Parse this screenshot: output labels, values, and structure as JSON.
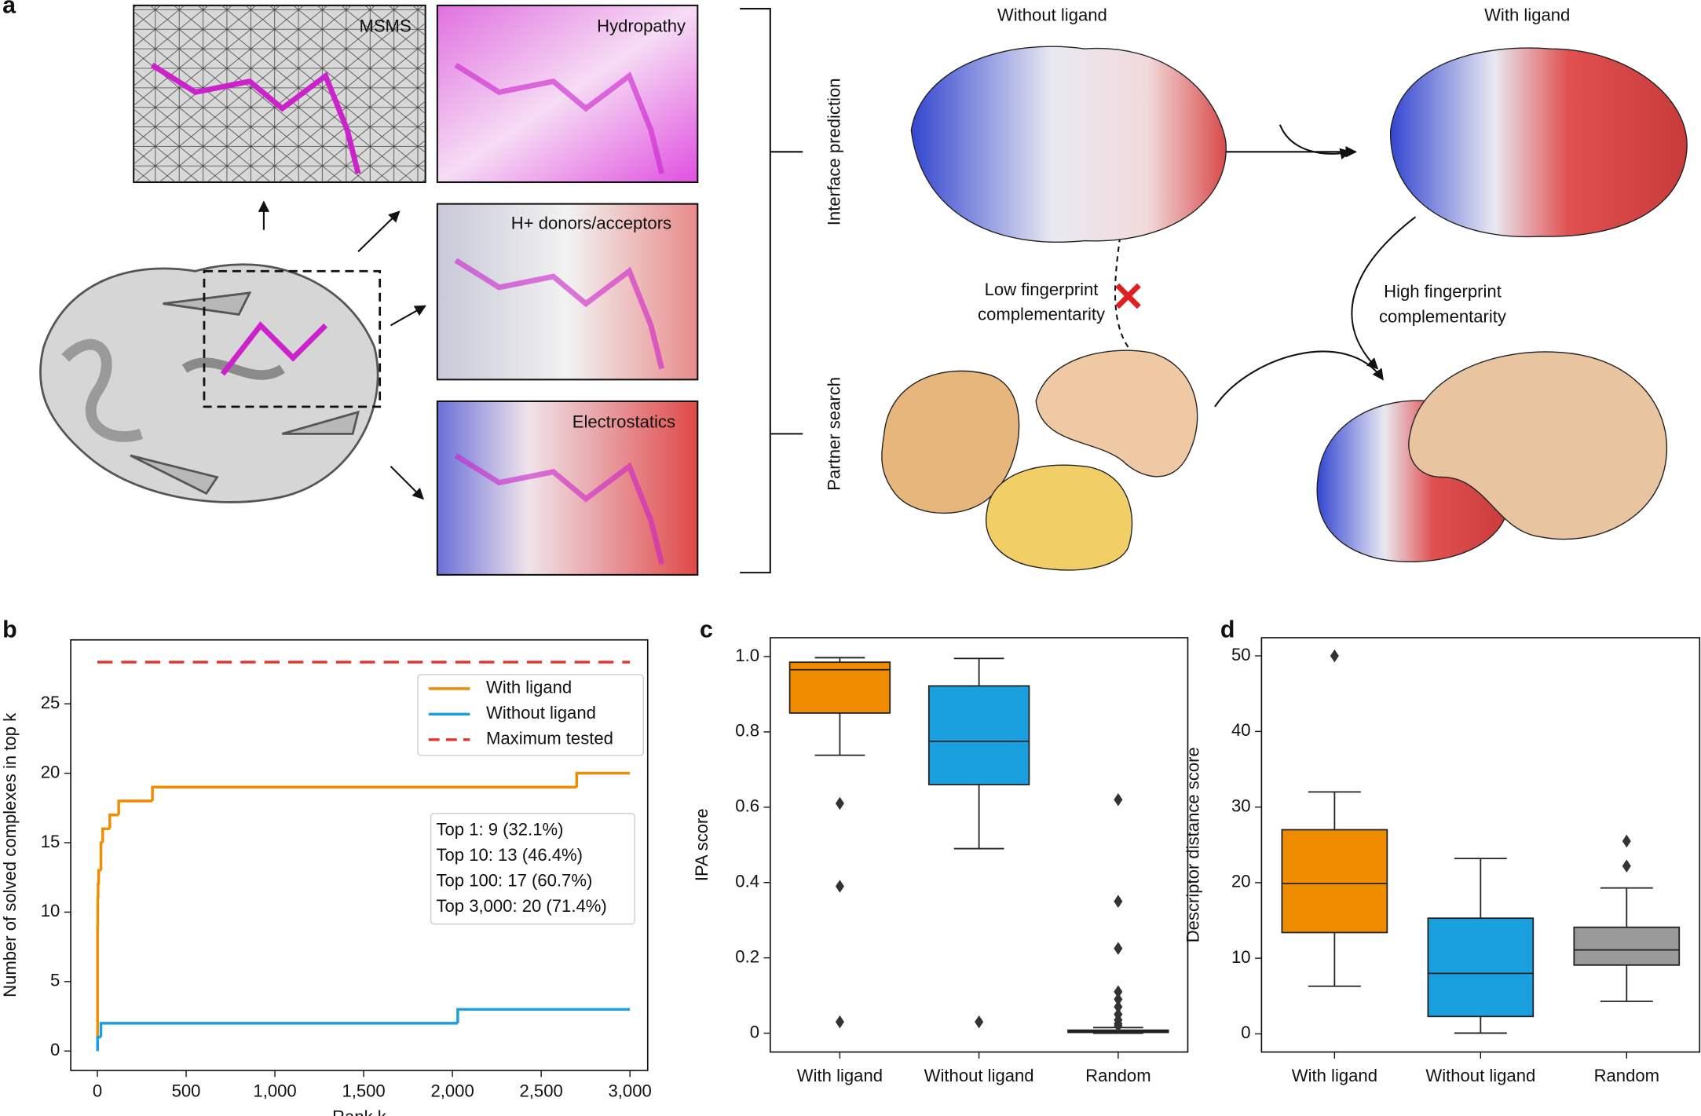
{
  "panel_labels": [
    "a",
    "b",
    "c",
    "d"
  ],
  "diagram": {
    "panel_titles": [
      "MSMS",
      "Hydropathy",
      "H+ donors/acceptors",
      "Electrostatics"
    ],
    "row_labels": [
      "Interface prediction",
      "Partner search"
    ],
    "column_labels": [
      "Without ligand",
      "With ligand"
    ],
    "low_note": [
      "Low fingerprint",
      "complementarity"
    ],
    "high_note": [
      "High fingerprint",
      "complementarity"
    ]
  },
  "chart_data": [
    {
      "type": "line",
      "step": "post",
      "xlabel": "Rank k",
      "ylabel": "Number of solved complexes in top k",
      "xlim": [
        -150,
        3100
      ],
      "ylim": [
        -1.4,
        29.6
      ],
      "xticks": [
        0,
        500,
        {
          "value": 1000,
          "label": "1,000"
        },
        {
          "value": 1500,
          "label": "1,500"
        },
        {
          "value": 2000,
          "label": "2,000"
        },
        {
          "value": 2500,
          "label": "2,500"
        },
        {
          "value": 3000,
          "label": "3,000"
        }
      ],
      "yticks": [
        0,
        5,
        10,
        15,
        20,
        25
      ],
      "grid": false,
      "legend": "upper right",
      "series": [
        {
          "name": "With ligand",
          "color": "#f08c00",
          "x": [
            1,
            2,
            4,
            7,
            10,
            20,
            30,
            50,
            70,
            120,
            310,
            2700,
            3000
          ],
          "values": [
            9,
            11,
            12,
            13,
            13,
            15,
            16,
            16,
            17,
            18,
            19,
            20,
            20
          ]
        },
        {
          "name": "Without ligand",
          "color": "#1a9fdf",
          "x": [
            1,
            20,
            2030,
            3000
          ],
          "values": [
            1,
            2,
            3,
            3
          ]
        },
        {
          "name": "Maximum tested",
          "color": "#e8322c",
          "dashed": true,
          "step": "none",
          "x": [
            0,
            3000
          ],
          "values": [
            28,
            28
          ]
        }
      ],
      "annotation": [
        "Top 1: 9 (32.1%)",
        "Top 10: 13 (46.4%)",
        "Top 100: 17 (60.7%)",
        "Top 3,000: 20 (71.4%)"
      ]
    },
    {
      "type": "box",
      "ylabel": "IPA score",
      "categories": [
        "With ligand",
        "Without ligand",
        "Random"
      ],
      "ylim": [
        -0.05,
        1.05
      ],
      "yticks": [
        0,
        0.2,
        0.4,
        0.6,
        0.8,
        {
          "value": 1,
          "label": "1.0"
        }
      ],
      "boxes": [
        {
          "color": "#f08c00",
          "low": 0.738,
          "q1": 0.85,
          "median": 0.965,
          "q3": 0.985,
          "high": 0.997,
          "outliers": [
            0.61,
            0.39,
            0.03
          ]
        },
        {
          "color": "#1a9fdf",
          "low": 0.49,
          "q1": 0.66,
          "median": 0.775,
          "q3": 0.922,
          "high": 0.995,
          "outliers": [
            0.03
          ]
        },
        {
          "color": "#9a9a9a",
          "low": 0,
          "q1": 0.002,
          "median": 0.005,
          "q3": 0.008,
          "high": 0.015,
          "outliers": [
            0.62,
            0.35,
            0.225,
            0.11,
            0.09,
            0.07,
            0.05,
            0.035,
            0.025,
            0.02
          ]
        }
      ]
    },
    {
      "type": "box",
      "ylabel": "Descriptor distance score",
      "categories": [
        "With ligand",
        "Without ligand",
        "Random"
      ],
      "ylim": [
        -2.4,
        52.4
      ],
      "yticks": [
        0,
        10,
        20,
        30,
        40,
        50
      ],
      "boxes": [
        {
          "color": "#f08c00",
          "low": 6.3,
          "q1": 13.4,
          "median": 19.9,
          "q3": 27,
          "high": 32,
          "outliers": [
            50
          ]
        },
        {
          "color": "#1a9fdf",
          "low": 0.1,
          "q1": 2.3,
          "median": 8,
          "q3": 15.3,
          "high": 23.2,
          "outliers": []
        },
        {
          "color": "#9a9a9a",
          "low": 4.3,
          "q1": 9.1,
          "median": 11.1,
          "q3": 14.1,
          "high": 19.3,
          "outliers": [
            22.2,
            25.5
          ]
        }
      ]
    }
  ]
}
